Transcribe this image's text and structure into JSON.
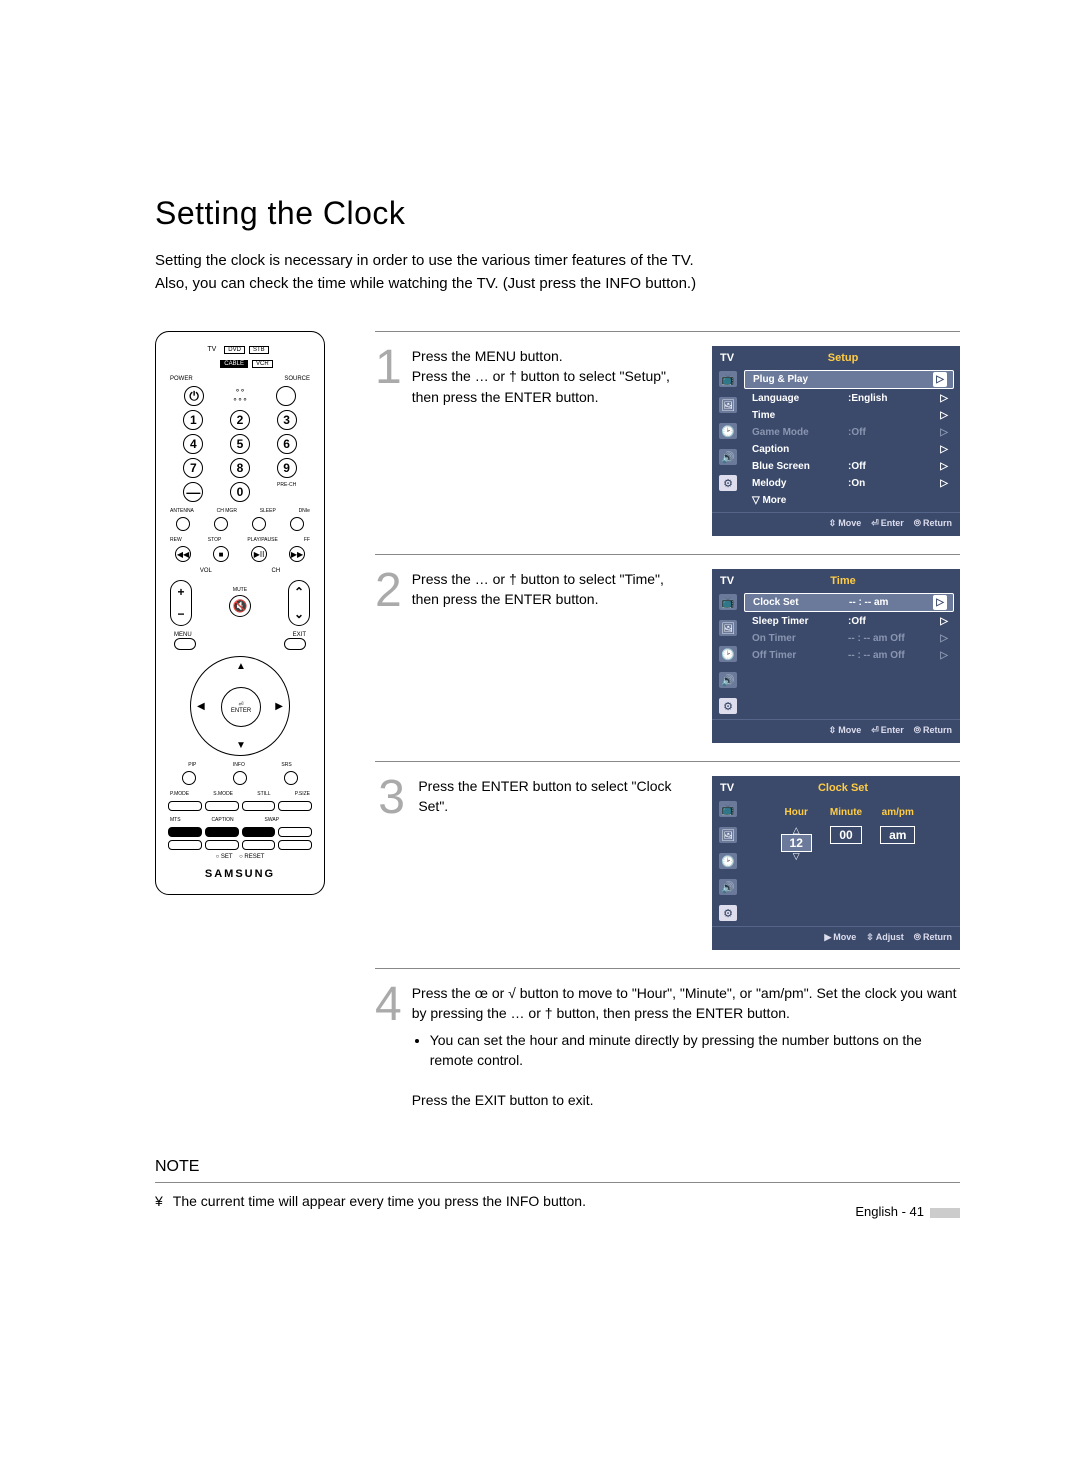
{
  "title": "Setting the Clock",
  "intro_line1": "Setting the clock is necessary in order to use the various timer features of the TV.",
  "intro_line2": "Also, you can check the time while watching the TV. (Just press the INFO button.)",
  "remote": {
    "devices_top": [
      "DVD",
      "STB"
    ],
    "tv_label": "TV",
    "devices_bottom": [
      "CABLE",
      "VCR"
    ],
    "power": "POWER",
    "source": "SOURCE",
    "keys": [
      "1",
      "2",
      "3",
      "4",
      "5",
      "6",
      "7",
      "8",
      "9",
      "0"
    ],
    "dash": "—",
    "prech": "PRE-CH",
    "row_labels": [
      "ANTENNA",
      "CH MGR",
      "SLEEP",
      "DNIe"
    ],
    "play_labels": [
      "REW",
      "STOP",
      "PLAY/PAUSE",
      "FF"
    ],
    "vol": "VOL",
    "ch": "CH",
    "mute": "MUTE",
    "menu": "MENU",
    "exit": "EXIT",
    "enter": "ENTER",
    "row2_labels": [
      "PIP",
      "INFO",
      "SRS"
    ],
    "row3_labels": [
      "P.MODE",
      "S.MODE",
      "STILL",
      "P.SIZE"
    ],
    "row4_labels": [
      "MTS",
      "CAPTION",
      "SWAP",
      ""
    ],
    "set": "SET",
    "reset": "RESET",
    "brand": "SAMSUNG"
  },
  "steps": [
    {
      "num": "1",
      "text": "Press the MENU button.\nPress the … or †  button to select \"Setup\", then press the ENTER button.",
      "osd": {
        "title": "Setup",
        "rows": [
          {
            "label": "Plug & Play",
            "value": "",
            "sel": true
          },
          {
            "label": "Language",
            "value": ":English"
          },
          {
            "label": "Time",
            "value": ""
          },
          {
            "label": "Game Mode",
            "value": ":Off",
            "dim": true
          },
          {
            "label": "Caption",
            "value": ""
          },
          {
            "label": "Blue Screen",
            "value": ":Off"
          },
          {
            "label": "Melody",
            "value": ":On"
          },
          {
            "label": "▽ More",
            "value": "",
            "noarr": true
          }
        ],
        "footer": [
          {
            "glyph": "⇳",
            "label": "Move"
          },
          {
            "glyph": "⏎",
            "label": "Enter"
          },
          {
            "glyph": "⦾",
            "label": "Return"
          }
        ]
      }
    },
    {
      "num": "2",
      "text": "Press the … or †  button to select \"Time\", then press the ENTER button.",
      "osd": {
        "title": "Time",
        "rows": [
          {
            "label": "Clock Set",
            "value": "-- : -- am",
            "sel": true
          },
          {
            "label": "Sleep Timer",
            "value": ":Off"
          },
          {
            "label": "On Timer",
            "value": "-- : -- am Off",
            "dim": true
          },
          {
            "label": "Off Timer",
            "value": "-- : -- am Off",
            "dim": true
          }
        ],
        "footer": [
          {
            "glyph": "⇳",
            "label": "Move"
          },
          {
            "glyph": "⏎",
            "label": "Enter"
          },
          {
            "glyph": "⦾",
            "label": "Return"
          }
        ]
      }
    },
    {
      "num": "3",
      "text": "Press the ENTER button to select \"Clock Set\".",
      "clock": {
        "title": "Clock Set",
        "fields": [
          {
            "hdr": "Hour",
            "val": "12",
            "active": true
          },
          {
            "hdr": "Minute",
            "val": "00"
          },
          {
            "hdr": "am/pm",
            "val": "am"
          }
        ],
        "footer": [
          {
            "glyph": "▶",
            "label": "Move"
          },
          {
            "glyph": "⇳",
            "label": "Adjust"
          },
          {
            "glyph": "⦾",
            "label": "Return"
          }
        ]
      }
    },
    {
      "num": "4",
      "text": "Press the œ or √  button to move to \"Hour\", \"Minute\", or \"am/pm\". Set the clock you want by pressing the … or †  button, then press the ENTER button.",
      "bullets": [
        "You can set the hour and minute directly by pressing the number buttons on the remote control."
      ],
      "exit_text": "Press the EXIT button to exit."
    }
  ],
  "note_heading": "NOTE",
  "note_bullet_glyph": "¥",
  "note_text": "The current time will appear every time you press the INFO button.",
  "page_footer": "English - 41"
}
